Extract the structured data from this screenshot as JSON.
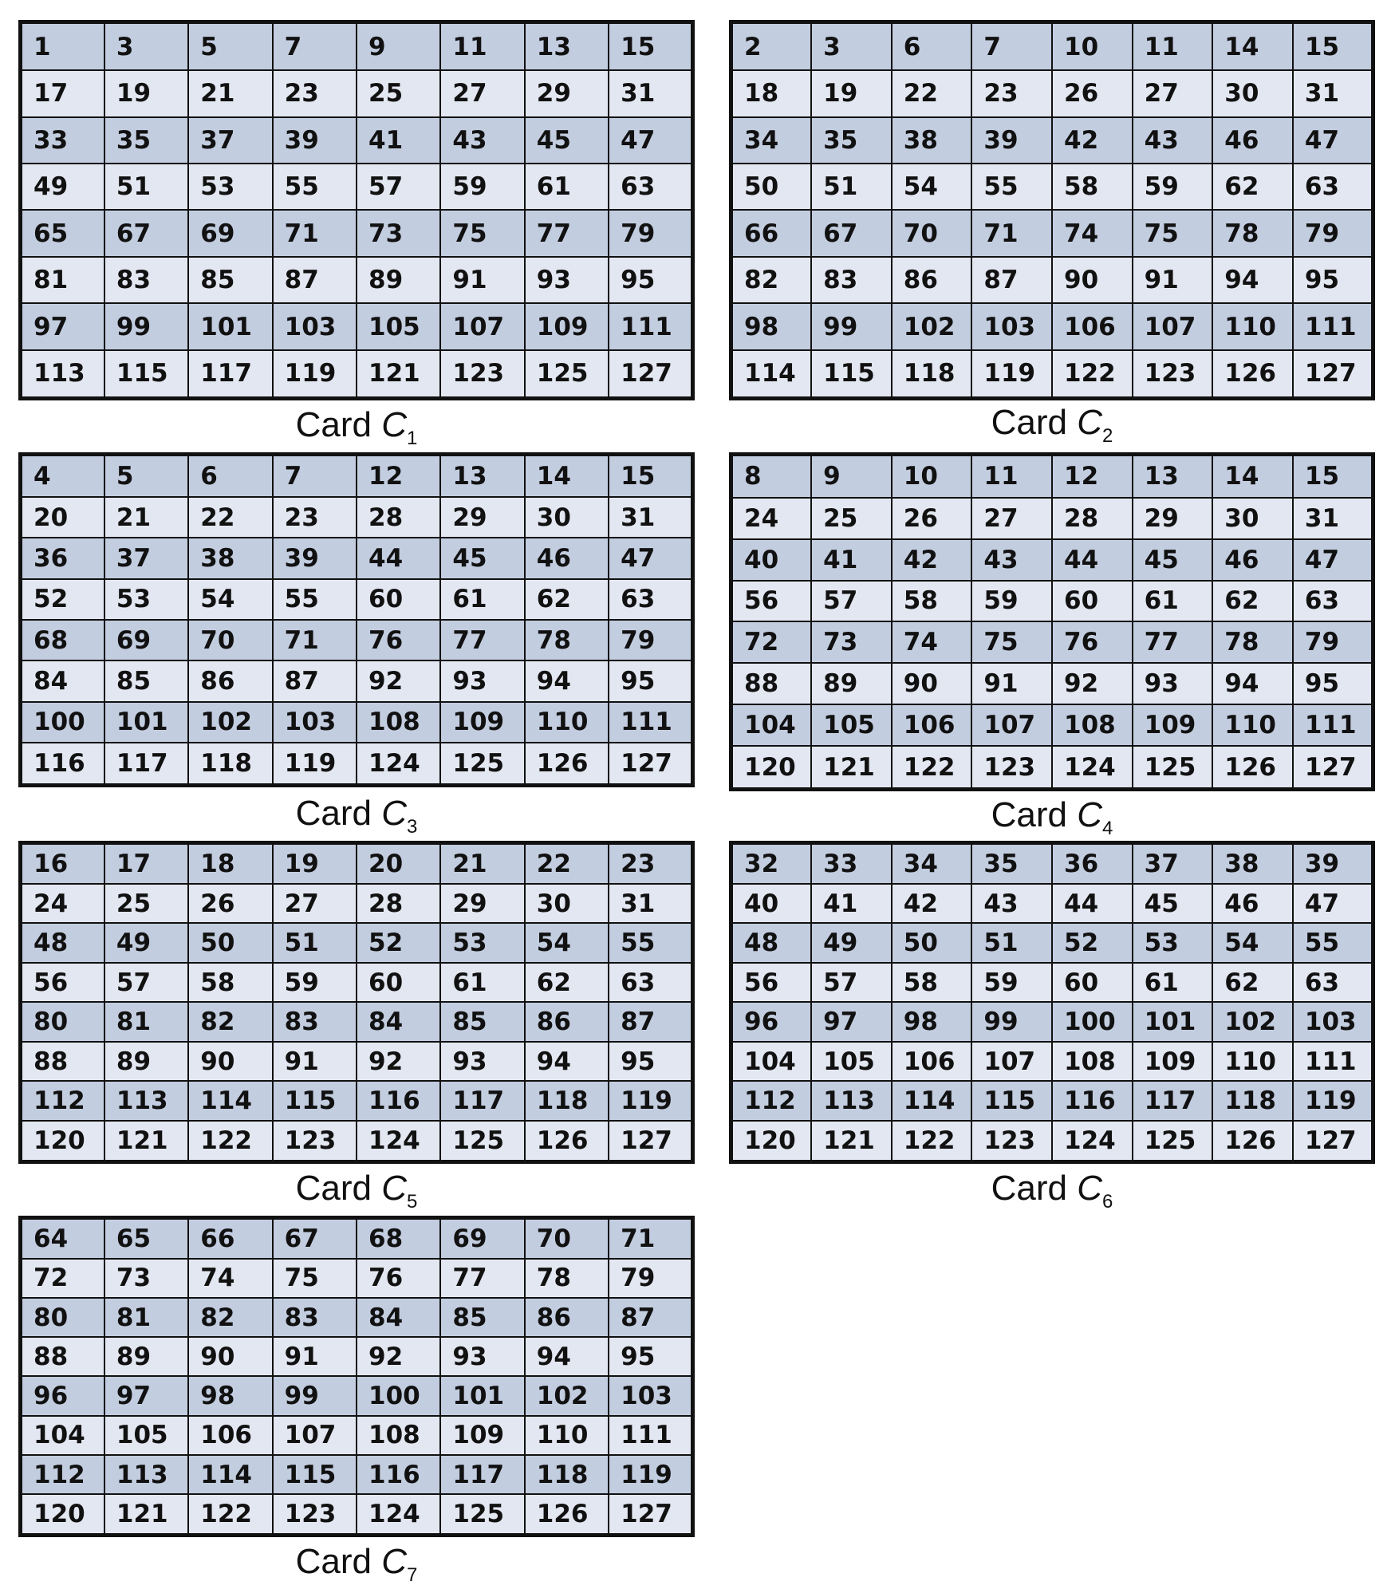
{
  "cards": [
    {
      "caption": "Card",
      "symbol": "C",
      "index": "1",
      "rows": [
        [
          "1",
          "3",
          "5",
          "7",
          "9",
          "11",
          "13",
          "15"
        ],
        [
          "17",
          "19",
          "21",
          "23",
          "25",
          "27",
          "29",
          "31"
        ],
        [
          "33",
          "35",
          "37",
          "39",
          "41",
          "43",
          "45",
          "47"
        ],
        [
          "49",
          "51",
          "53",
          "55",
          "57",
          "59",
          "61",
          "63"
        ],
        [
          "65",
          "67",
          "69",
          "71",
          "73",
          "75",
          "77",
          "79"
        ],
        [
          "81",
          "83",
          "85",
          "87",
          "89",
          "91",
          "93",
          "95"
        ],
        [
          "97",
          "99",
          "101",
          "103",
          "105",
          "107",
          "109",
          "111"
        ],
        [
          "113",
          "115",
          "117",
          "119",
          "121",
          "123",
          "125",
          "127"
        ]
      ]
    },
    {
      "caption": "Card",
      "symbol": "C",
      "index": "2",
      "rows": [
        [
          "2",
          "3",
          "6",
          "7",
          "10",
          "11",
          "14",
          "15"
        ],
        [
          "18",
          "19",
          "22",
          "23",
          "26",
          "27",
          "30",
          "31"
        ],
        [
          "34",
          "35",
          "38",
          "39",
          "42",
          "43",
          "46",
          "47"
        ],
        [
          "50",
          "51",
          "54",
          "55",
          "58",
          "59",
          "62",
          "63"
        ],
        [
          "66",
          "67",
          "70",
          "71",
          "74",
          "75",
          "78",
          "79"
        ],
        [
          "82",
          "83",
          "86",
          "87",
          "90",
          "91",
          "94",
          "95"
        ],
        [
          "98",
          "99",
          "102",
          "103",
          "106",
          "107",
          "110",
          "111"
        ],
        [
          "114",
          "115",
          "118",
          "119",
          "122",
          "123",
          "126",
          "127"
        ]
      ]
    },
    {
      "caption": "Card",
      "symbol": "C",
      "index": "3",
      "rows": [
        [
          "4",
          "5",
          "6",
          "7",
          "12",
          "13",
          "14",
          "15"
        ],
        [
          "20",
          "21",
          "22",
          "23",
          "28",
          "29",
          "30",
          "31"
        ],
        [
          "36",
          "37",
          "38",
          "39",
          "44",
          "45",
          "46",
          "47"
        ],
        [
          "52",
          "53",
          "54",
          "55",
          "60",
          "61",
          "62",
          "63"
        ],
        [
          "68",
          "69",
          "70",
          "71",
          "76",
          "77",
          "78",
          "79"
        ],
        [
          "84",
          "85",
          "86",
          "87",
          "92",
          "93",
          "94",
          "95"
        ],
        [
          "100",
          "101",
          "102",
          "103",
          "108",
          "109",
          "110",
          "111"
        ],
        [
          "116",
          "117",
          "118",
          "119",
          "124",
          "125",
          "126",
          "127"
        ]
      ]
    },
    {
      "caption": "Card",
      "symbol": "C",
      "index": "4",
      "rows": [
        [
          "8",
          "9",
          "10",
          "11",
          "12",
          "13",
          "14",
          "15"
        ],
        [
          "24",
          "25",
          "26",
          "27",
          "28",
          "29",
          "30",
          "31"
        ],
        [
          "40",
          "41",
          "42",
          "43",
          "44",
          "45",
          "46",
          "47"
        ],
        [
          "56",
          "57",
          "58",
          "59",
          "60",
          "61",
          "62",
          "63"
        ],
        [
          "72",
          "73",
          "74",
          "75",
          "76",
          "77",
          "78",
          "79"
        ],
        [
          "88",
          "89",
          "90",
          "91",
          "92",
          "93",
          "94",
          "95"
        ],
        [
          "104",
          "105",
          "106",
          "107",
          "108",
          "109",
          "110",
          "111"
        ],
        [
          "120",
          "121",
          "122",
          "123",
          "124",
          "125",
          "126",
          "127"
        ]
      ]
    },
    {
      "caption": "Card",
      "symbol": "C",
      "index": "5",
      "rows": [
        [
          "16",
          "17",
          "18",
          "19",
          "20",
          "21",
          "22",
          "23"
        ],
        [
          "24",
          "25",
          "26",
          "27",
          "28",
          "29",
          "30",
          "31"
        ],
        [
          "48",
          "49",
          "50",
          "51",
          "52",
          "53",
          "54",
          "55"
        ],
        [
          "56",
          "57",
          "58",
          "59",
          "60",
          "61",
          "62",
          "63"
        ],
        [
          "80",
          "81",
          "82",
          "83",
          "84",
          "85",
          "86",
          "87"
        ],
        [
          "88",
          "89",
          "90",
          "91",
          "92",
          "93",
          "94",
          "95"
        ],
        [
          "112",
          "113",
          "114",
          "115",
          "116",
          "117",
          "118",
          "119"
        ],
        [
          "120",
          "121",
          "122",
          "123",
          "124",
          "125",
          "126",
          "127"
        ]
      ]
    },
    {
      "caption": "Card",
      "symbol": "C",
      "index": "6",
      "rows": [
        [
          "32",
          "33",
          "34",
          "35",
          "36",
          "37",
          "38",
          "39"
        ],
        [
          "40",
          "41",
          "42",
          "43",
          "44",
          "45",
          "46",
          "47"
        ],
        [
          "48",
          "49",
          "50",
          "51",
          "52",
          "53",
          "54",
          "55"
        ],
        [
          "56",
          "57",
          "58",
          "59",
          "60",
          "61",
          "62",
          "63"
        ],
        [
          "96",
          "97",
          "98",
          "99",
          "100",
          "101",
          "102",
          "103"
        ],
        [
          "104",
          "105",
          "106",
          "107",
          "108",
          "109",
          "110",
          "111"
        ],
        [
          "112",
          "113",
          "114",
          "115",
          "116",
          "117",
          "118",
          "119"
        ],
        [
          "120",
          "121",
          "122",
          "123",
          "124",
          "125",
          "126",
          "127"
        ]
      ]
    },
    {
      "caption": "Card",
      "symbol": "C",
      "index": "7",
      "rows": [
        [
          "64",
          "65",
          "66",
          "67",
          "68",
          "69",
          "70",
          "71"
        ],
        [
          "72",
          "73",
          "74",
          "75",
          "76",
          "77",
          "78",
          "79"
        ],
        [
          "80",
          "81",
          "82",
          "83",
          "84",
          "85",
          "86",
          "87"
        ],
        [
          "88",
          "89",
          "90",
          "91",
          "92",
          "93",
          "94",
          "95"
        ],
        [
          "96",
          "97",
          "98",
          "99",
          "100",
          "101",
          "102",
          "103"
        ],
        [
          "104",
          "105",
          "106",
          "107",
          "108",
          "109",
          "110",
          "111"
        ],
        [
          "112",
          "113",
          "114",
          "115",
          "116",
          "117",
          "118",
          "119"
        ],
        [
          "120",
          "121",
          "122",
          "123",
          "124",
          "125",
          "126",
          "127"
        ]
      ]
    }
  ]
}
